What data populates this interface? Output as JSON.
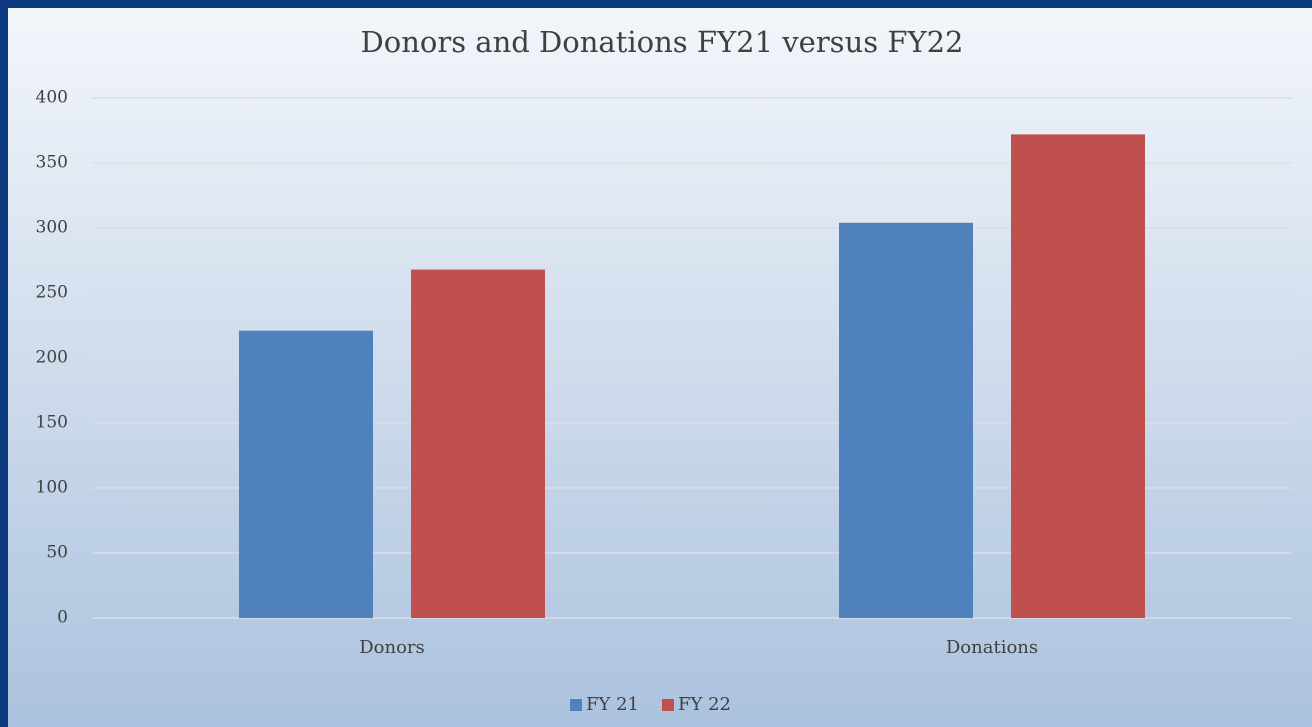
{
  "chart_data": {
    "type": "bar",
    "title": "Donors and Donations FY21 versus FY22",
    "categories": [
      "Donors",
      "Donations"
    ],
    "series": [
      {
        "name": "FY 21",
        "color": "#4f81bd",
        "values": [
          221,
          304
        ]
      },
      {
        "name": "FY 22",
        "color": "#c0504d",
        "values": [
          268,
          372
        ]
      }
    ],
    "ylim": [
      0,
      400
    ],
    "yticks": [
      0,
      50,
      100,
      150,
      200,
      250,
      300,
      350,
      400
    ],
    "grid": true,
    "legend": "bottom"
  }
}
